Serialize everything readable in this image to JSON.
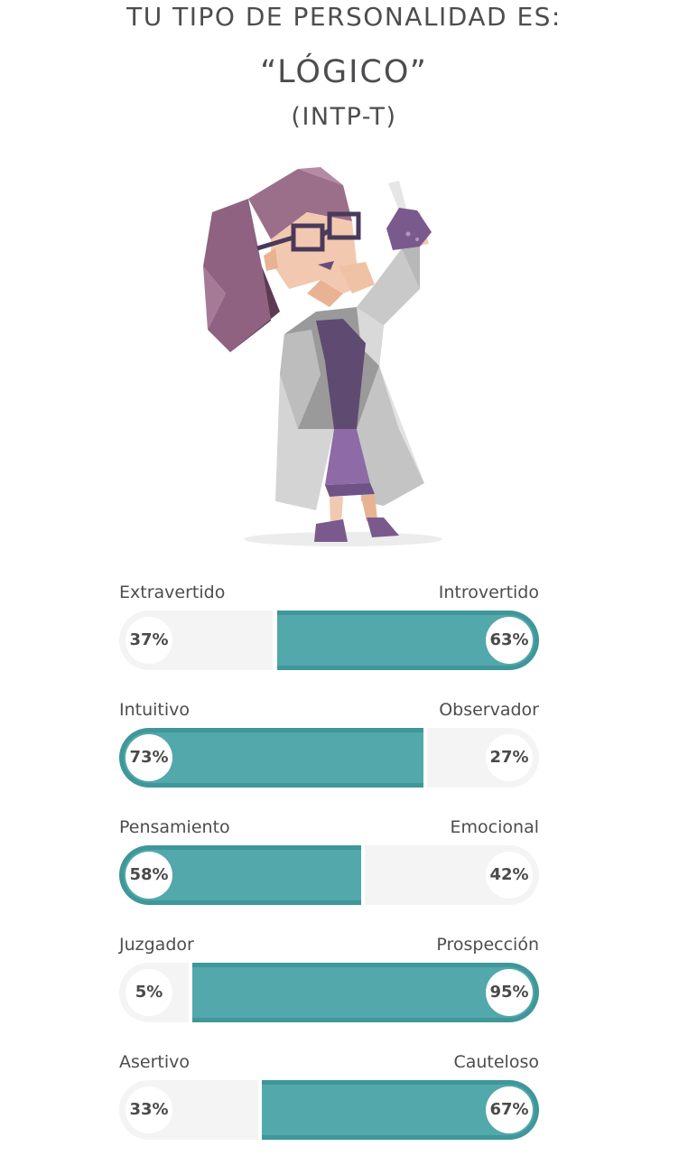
{
  "header": {
    "heading": "TU TIPO DE PERSONALIDAD ES:",
    "type_name": "“LÓGICO”",
    "type_code": "(INTP-T)"
  },
  "illustration": {
    "icon": "scientist-with-flask-illustration",
    "colors": {
      "purple": "#7a5a8c",
      "hair": "#9b6f8a",
      "skin": "#f2c9b0",
      "coat": "#d4d4d4"
    }
  },
  "colors": {
    "accent": "#52a8aa",
    "accent_border": "#3f9799",
    "track": "#f4f4f4",
    "text": "#4d4d4f"
  },
  "scales": [
    {
      "left_label": "Extravertido",
      "right_label": "Introvertido",
      "left_pct": "37%",
      "right_pct": "63%",
      "left_value": 37,
      "right_value": 63,
      "dominant": "right"
    },
    {
      "left_label": "Intuitivo",
      "right_label": "Observador",
      "left_pct": "73%",
      "right_pct": "27%",
      "left_value": 73,
      "right_value": 27,
      "dominant": "left"
    },
    {
      "left_label": "Pensamiento",
      "right_label": "Emocional",
      "left_pct": "58%",
      "right_pct": "42%",
      "left_value": 58,
      "right_value": 42,
      "dominant": "left"
    },
    {
      "left_label": "Juzgador",
      "right_label": "Prospección",
      "left_pct": "5%",
      "right_pct": "95%",
      "left_value": 5,
      "right_value": 95,
      "dominant": "right"
    },
    {
      "left_label": "Asertivo",
      "right_label": "Cauteloso",
      "left_pct": "33%",
      "right_pct": "67%",
      "left_value": 33,
      "right_value": 67,
      "dominant": "right"
    }
  ]
}
